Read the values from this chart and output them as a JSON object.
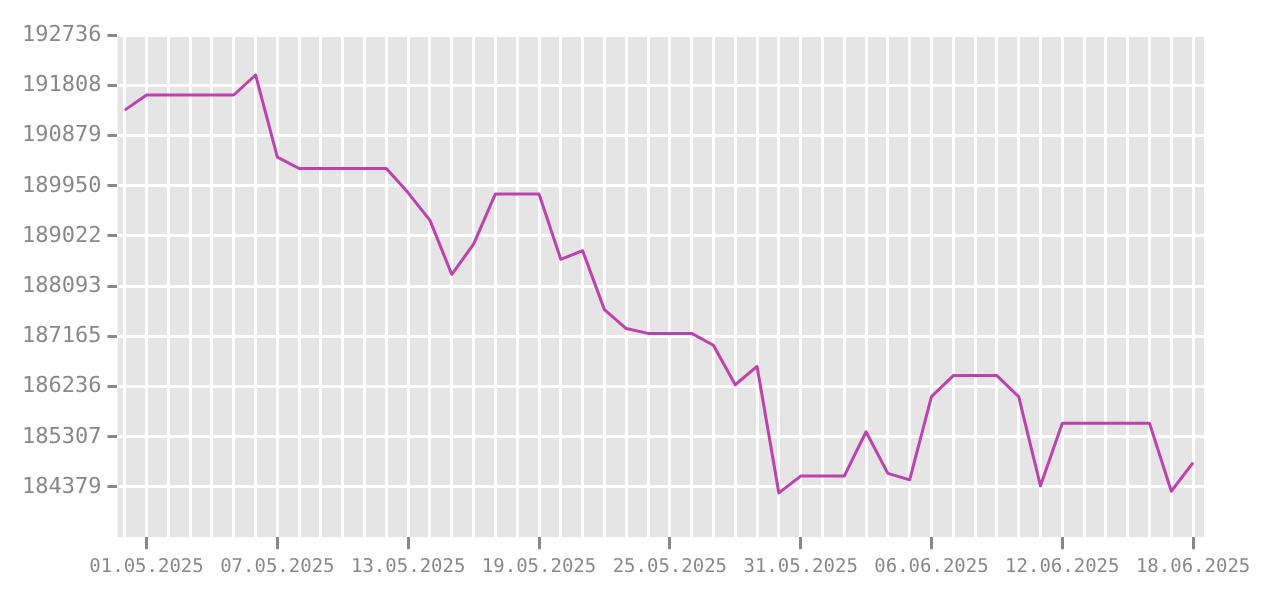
{
  "chart_data": {
    "type": "line",
    "x": [
      "2025-04-30",
      "2025-05-01",
      "2025-05-02",
      "2025-05-03",
      "2025-05-04",
      "2025-05-05",
      "2025-05-06",
      "2025-05-07",
      "2025-05-08",
      "2025-05-09",
      "2025-05-10",
      "2025-05-11",
      "2025-05-12",
      "2025-05-13",
      "2025-05-14",
      "2025-05-15",
      "2025-05-16",
      "2025-05-17",
      "2025-05-18",
      "2025-05-19",
      "2025-05-20",
      "2025-05-21",
      "2025-05-22",
      "2025-05-23",
      "2025-05-24",
      "2025-05-25",
      "2025-05-26",
      "2025-05-27",
      "2025-05-28",
      "2025-05-29",
      "2025-05-30",
      "2025-05-31",
      "2025-06-01",
      "2025-06-02",
      "2025-06-03",
      "2025-06-04",
      "2025-06-05",
      "2025-06-06",
      "2025-06-07",
      "2025-06-08",
      "2025-06-09",
      "2025-06-10",
      "2025-06-11",
      "2025-06-12",
      "2025-06-13",
      "2025-06-14",
      "2025-06-15",
      "2025-06-16",
      "2025-06-17",
      "2025-06-18"
    ],
    "series": [
      {
        "color": "#c040b0",
        "values": [
          191350,
          191630,
          191630,
          191630,
          191630,
          191630,
          192000,
          190480,
          190270,
          190270,
          190270,
          190270,
          190270,
          189820,
          189310,
          188310,
          188870,
          189800,
          189800,
          189800,
          188590,
          188750,
          187660,
          187310,
          187220,
          187220,
          187220,
          187000,
          186270,
          186610,
          184270,
          184580,
          184580,
          184580,
          185400,
          184630,
          184510,
          186050,
          186440,
          186440,
          186440,
          186050,
          184400,
          185560,
          185560,
          185560,
          185560,
          185560,
          184300,
          184830
        ]
      }
    ],
    "xlim": [
      "2025-04-29T16:00",
      "2025-06-18T12:00"
    ],
    "xticks": [
      {
        "value": "2025-05-01",
        "label": "01.05.2025"
      },
      {
        "value": "2025-05-07",
        "label": "07.05.2025"
      },
      {
        "value": "2025-05-13",
        "label": "13.05.2025"
      },
      {
        "value": "2025-05-19",
        "label": "19.05.2025"
      },
      {
        "value": "2025-05-25",
        "label": "25.05.2025"
      },
      {
        "value": "2025-05-31",
        "label": "31.05.2025"
      },
      {
        "value": "2025-06-06",
        "label": "06.06.2025"
      },
      {
        "value": "2025-06-12",
        "label": "12.06.2025"
      },
      {
        "value": "2025-06-18",
        "label": "18.06.2025"
      }
    ],
    "ylim": [
      183450,
      192736
    ],
    "yticks": [
      184379,
      185307,
      186236,
      187165,
      188093,
      189022,
      189950,
      190879,
      191808,
      192736
    ],
    "grid": true,
    "marker": "none",
    "line_style": "solid"
  }
}
